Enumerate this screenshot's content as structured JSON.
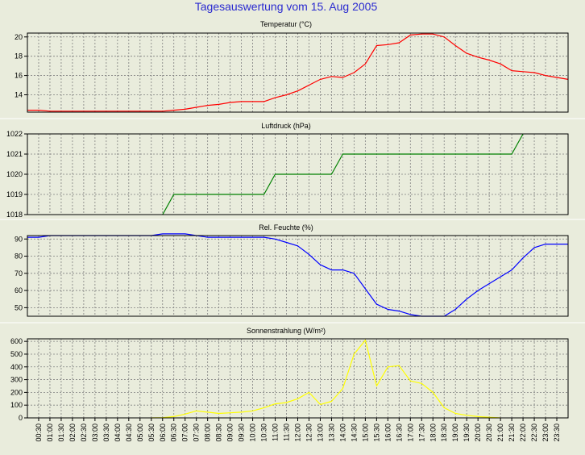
{
  "page": {
    "title": "Tagesauswertung vom 15. Aug 2005"
  },
  "colors": {
    "background": "#e9ecdc",
    "plot_background": "#e9ecdc",
    "grid": "#7f7f7f",
    "axis": "#000000",
    "title": "#2a2ad0",
    "temperature": "#ff0000",
    "pressure": "#008000",
    "humidity": "#0000ff",
    "radiation": "#ffff00"
  },
  "time_labels": [
    "00:30",
    "01:00",
    "01:30",
    "02:00",
    "02:30",
    "03:00",
    "03:30",
    "04:00",
    "04:30",
    "05:00",
    "05:30",
    "06:00",
    "06:30",
    "07:00",
    "07:30",
    "08:00",
    "08:30",
    "09:00",
    "09:30",
    "10:00",
    "10:30",
    "11:00",
    "11:30",
    "12:00",
    "12:30",
    "13:00",
    "13:30",
    "14:00",
    "14:30",
    "15:00",
    "15:30",
    "16:00",
    "16:30",
    "17:00",
    "17:30",
    "18:00",
    "18:30",
    "19:00",
    "19:30",
    "20:00",
    "20:30",
    "21:00",
    "21:30",
    "22:00",
    "22:30",
    "23:00",
    "23:30"
  ],
  "chart_data": [
    {
      "type": "line",
      "title": "Temperatur (°C)",
      "color": "#ff0000",
      "ylim": [
        12.2,
        20.4
      ],
      "yticks": [
        14,
        16,
        18,
        20
      ],
      "ytick_labels": [
        "14",
        "16",
        "18",
        "20"
      ],
      "x": [
        "00:00",
        "00:30",
        "01:00",
        "01:30",
        "02:00",
        "02:30",
        "06:00",
        "06:30",
        "07:00",
        "07:30",
        "08:00",
        "08:30",
        "09:00",
        "09:30",
        "10:00",
        "10:30",
        "11:00",
        "11:30",
        "12:00",
        "12:30",
        "13:00",
        "13:30",
        "14:00",
        "14:30",
        "15:00",
        "15:30",
        "16:00",
        "16:30",
        "17:00",
        "17:30",
        "18:00",
        "18:30",
        "19:00",
        "19:30",
        "20:00",
        "20:30",
        "21:00",
        "21:30",
        "22:00",
        "22:30",
        "23:00",
        "23:30",
        "24:00"
      ],
      "values": [
        12.4,
        12.4,
        12.3,
        12.3,
        12.3,
        12.3,
        12.3,
        12.4,
        12.5,
        12.7,
        12.9,
        13.0,
        13.2,
        13.3,
        13.3,
        13.3,
        13.7,
        14.0,
        14.4,
        15.0,
        15.6,
        15.9,
        15.8,
        16.3,
        17.2,
        19.1,
        19.2,
        19.4,
        20.2,
        20.3,
        20.3,
        20.0,
        19.1,
        18.3,
        17.9,
        17.6,
        17.2,
        16.5,
        16.4,
        16.3,
        16.0,
        15.8,
        15.6
      ]
    },
    {
      "type": "line",
      "title": "Luftdruck (hPa)",
      "color": "#008000",
      "ylim": [
        1018,
        1022
      ],
      "yticks": [
        1018,
        1019,
        1020,
        1021,
        1022
      ],
      "ytick_labels": [
        "1018",
        "1019",
        "1020",
        "1021",
        "1022"
      ],
      "x": [
        "06:00",
        "06:30",
        "10:30",
        "11:00",
        "13:30",
        "14:00",
        "21:30",
        "22:00"
      ],
      "values": [
        1018,
        1019,
        1019,
        1020,
        1020,
        1021,
        1021,
        1022
      ]
    },
    {
      "type": "line",
      "title": "Rel. Feuchte (%)",
      "color": "#0000ff",
      "ylim": [
        45,
        92
      ],
      "yticks": [
        50,
        60,
        70,
        80,
        90
      ],
      "ytick_labels": [
        "50",
        "60",
        "70",
        "80",
        "90"
      ],
      "x": [
        "00:00",
        "00:30",
        "01:00",
        "01:30",
        "02:00",
        "02:30",
        "03:00",
        "03:30",
        "04:00",
        "04:30",
        "05:00",
        "05:30",
        "06:00",
        "06:30",
        "07:00",
        "07:30",
        "08:00",
        "08:30",
        "09:00",
        "09:30",
        "10:00",
        "10:30",
        "11:00",
        "11:30",
        "12:00",
        "12:30",
        "13:00",
        "13:30",
        "14:00",
        "14:30",
        "15:00",
        "15:30",
        "16:00",
        "16:30",
        "17:00",
        "17:30",
        "18:00",
        "18:30",
        "19:00",
        "19:30",
        "20:00",
        "20:30",
        "21:00",
        "21:30",
        "22:00",
        "22:30",
        "23:00",
        "23:30",
        "24:00"
      ],
      "values": [
        91,
        91,
        92,
        92,
        92,
        92,
        92,
        92,
        92,
        92,
        92,
        92,
        93,
        93,
        93,
        92,
        91,
        91,
        91,
        91,
        91,
        91,
        90,
        88,
        86,
        81,
        75,
        72,
        72,
        70,
        61,
        52,
        49,
        48,
        46,
        45,
        45,
        45,
        49,
        55,
        60,
        64,
        68,
        72,
        79,
        85,
        87,
        87,
        87
      ]
    },
    {
      "type": "line",
      "title": "Sonnenstrahlung (W/m²)",
      "color": "#ffff00",
      "ylim": [
        0,
        620
      ],
      "yticks": [
        0,
        100,
        200,
        300,
        400,
        500,
        600
      ],
      "ytick_labels": [
        "0",
        "100",
        "200",
        "300",
        "400",
        "500",
        "600"
      ],
      "x": [
        "05:30",
        "06:00",
        "06:30",
        "07:00",
        "07:30",
        "08:00",
        "08:30",
        "09:00",
        "09:30",
        "10:00",
        "10:30",
        "11:00",
        "11:30",
        "12:00",
        "12:30",
        "13:00",
        "13:30",
        "14:00",
        "14:30",
        "15:00",
        "15:30",
        "16:00",
        "16:30",
        "17:00",
        "17:30",
        "18:00",
        "18:30",
        "19:00",
        "19:30",
        "20:00",
        "20:30",
        "21:00"
      ],
      "values": [
        0,
        2,
        10,
        30,
        55,
        45,
        35,
        40,
        45,
        55,
        80,
        110,
        120,
        150,
        200,
        105,
        130,
        230,
        500,
        610,
        250,
        400,
        410,
        290,
        270,
        200,
        80,
        35,
        20,
        10,
        5,
        0
      ]
    }
  ]
}
